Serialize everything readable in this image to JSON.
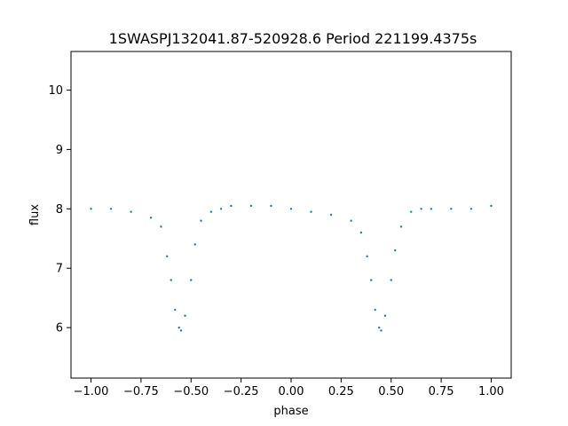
{
  "chart_data": {
    "type": "scatter",
    "title": "1SWASPJ132041.87-520928.6 Period 221199.4375s",
    "xlabel": "phase",
    "ylabel": "flux",
    "xlim": [
      -1.1,
      1.1
    ],
    "ylim": [
      5.15,
      10.65
    ],
    "x_ticks": [
      -1.0,
      -0.75,
      -0.5,
      -0.25,
      0.0,
      0.25,
      0.5,
      0.75,
      1.0
    ],
    "x_tick_labels": [
      "−1.00",
      "−0.75",
      "−0.50",
      "−0.25",
      "0.00",
      "0.25",
      "0.50",
      "0.75",
      "1.00"
    ],
    "y_ticks": [
      6,
      7,
      8,
      9,
      10
    ],
    "y_tick_labels": [
      "6",
      "7",
      "8",
      "9",
      "10"
    ],
    "grid": false,
    "marker_color": "#1f77b4",
    "series": [
      {
        "phase": [
          -1.0,
          -0.9,
          -0.8,
          -0.7,
          -0.65,
          -0.62,
          -0.6,
          -0.58,
          -0.56,
          -0.55,
          -0.53,
          -0.5,
          -0.48,
          -0.45,
          -0.4,
          -0.35,
          -0.3,
          -0.2,
          -0.1,
          0.0,
          0.1,
          0.2,
          0.3,
          0.35,
          0.38,
          0.4,
          0.42,
          0.44,
          0.45,
          0.47,
          0.5,
          0.52,
          0.55,
          0.6,
          0.65,
          0.7,
          0.8,
          0.9,
          1.0
        ],
        "flux": [
          8.0,
          8.0,
          7.95,
          7.85,
          7.7,
          7.2,
          6.8,
          6.3,
          6.0,
          5.95,
          6.2,
          6.8,
          7.4,
          7.8,
          7.95,
          8.0,
          8.05,
          8.05,
          8.05,
          8.0,
          7.95,
          7.9,
          7.8,
          7.6,
          7.2,
          6.8,
          6.3,
          6.0,
          5.95,
          6.2,
          6.8,
          7.3,
          7.7,
          7.95,
          8.0,
          8.0,
          8.0,
          8.0,
          8.05
        ]
      }
    ]
  }
}
